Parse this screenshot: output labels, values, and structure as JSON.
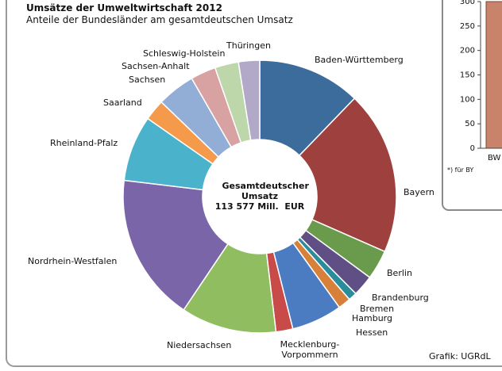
{
  "chart_data": [
    {
      "type": "donut",
      "title": "Umsätze der Umweltwirtschaft 2012",
      "subtitle": "Anteile der Bundesländer am gesamtdeutschen Umsatz",
      "center_label": [
        "Gesamtdeutscher Umsatz",
        "113 577 Mill.  EUR"
      ],
      "source": "Grafik: UGRdL",
      "categories": [
        "Baden-Württemberg",
        "Bayern",
        "Berlin",
        "Brandenburg",
        "Bremen",
        "Hamburg",
        "Hessen",
        "Mecklenburg-Vorpommern",
        "Niedersachsen",
        "Nordrhein-Westfalen",
        "Rheinland-Pfalz",
        "Saarland",
        "Sachsen",
        "Sachsen-Anhalt",
        "Schleswig-Holstein",
        "Thüringen"
      ],
      "values": [
        12.2,
        19.4,
        3.5,
        2.5,
        1,
        1.5,
        6,
        2,
        11.3,
        17.5,
        7.8,
        2.5,
        4.5,
        3,
        2.8,
        2.5
      ],
      "colors": [
        "#3b6c9c",
        "#9e403d",
        "#6a9a4b",
        "#5f4f84",
        "#2b8c9c",
        "#d6803a",
        "#4b7cc2",
        "#c84b4a",
        "#8fbd5f",
        "#7a65a9",
        "#4ab2ca",
        "#f59a4a",
        "#93aed6",
        "#d9a2a2",
        "#bdd7aa",
        "#b2a9c9"
      ]
    },
    {
      "type": "bar",
      "categories": [
        "BW"
      ],
      "values": [
        300
      ],
      "color": "#c8836a",
      "ylim": [
        0,
        300
      ],
      "yticks": [
        0,
        50,
        100,
        150,
        200,
        250,
        300
      ],
      "footnote": "*) für BY"
    }
  ]
}
